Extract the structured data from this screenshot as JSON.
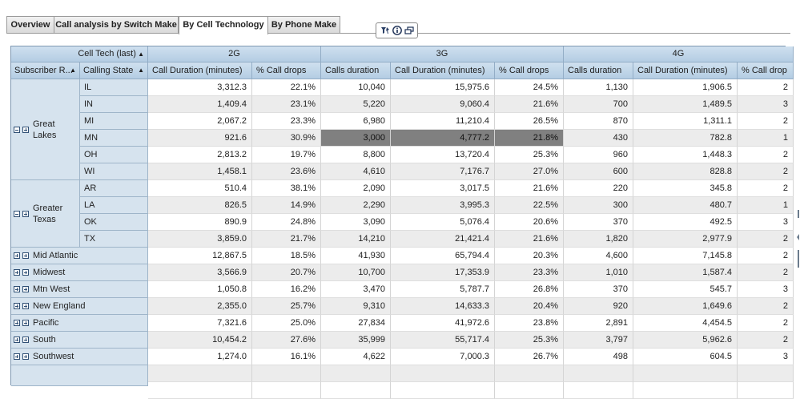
{
  "tabs": [
    "Overview",
    "Call analysis by Switch Make",
    "By Cell Technology",
    "By Phone Make"
  ],
  "active_tab": "By Cell Technology",
  "colors": {
    "header": "#c3d7ea",
    "row_header": "#d6e3ee",
    "selected": "#808080",
    "stripe": "#ececec"
  },
  "toolbar_icons": [
    "filter-pin-icon",
    "info-icon",
    "window-restore-icon"
  ],
  "crosstab": {
    "column_dim_label": "Cell Tech (last)",
    "row_dim_labels": [
      "Subscriber R...",
      "Calling State"
    ],
    "tech_groups": [
      {
        "name": "2G",
        "measures": [
          "Call Duration (minutes)",
          "% Call drops"
        ]
      },
      {
        "name": "3G",
        "measures": [
          "Calls duration",
          "Call Duration (minutes)",
          "% Call drops"
        ]
      },
      {
        "name": "4G",
        "measures": [
          "Calls duration",
          "Call Duration (minutes)",
          "% Call drop"
        ]
      }
    ],
    "rows": [
      {
        "region": "Great Lakes",
        "state": "IL",
        "v": [
          "3,312.3",
          "22.1%",
          "10,040",
          "15,975.6",
          "24.5%",
          "1,130",
          "1,906.5",
          "2"
        ]
      },
      {
        "region": "Great Lakes",
        "state": "IN",
        "v": [
          "1,409.4",
          "23.1%",
          "5,220",
          "9,060.4",
          "21.6%",
          "700",
          "1,489.5",
          "3"
        ]
      },
      {
        "region": "Great Lakes",
        "state": "MI",
        "v": [
          "2,067.2",
          "23.3%",
          "6,980",
          "11,210.4",
          "26.5%",
          "870",
          "1,311.1",
          "2"
        ]
      },
      {
        "region": "Great Lakes",
        "state": "MN",
        "v": [
          "921.6",
          "30.9%",
          "3,000",
          "4,777.2",
          "21.8%",
          "430",
          "782.8",
          "1"
        ],
        "selected": true
      },
      {
        "region": "Great Lakes",
        "state": "OH",
        "v": [
          "2,813.2",
          "19.7%",
          "8,800",
          "13,720.4",
          "25.3%",
          "960",
          "1,448.3",
          "2"
        ]
      },
      {
        "region": "Great Lakes",
        "state": "WI",
        "v": [
          "1,458.1",
          "23.6%",
          "4,610",
          "7,176.7",
          "27.0%",
          "600",
          "828.8",
          "2"
        ]
      },
      {
        "region": "Greater Texas",
        "state": "AR",
        "v": [
          "510.4",
          "38.1%",
          "2,090",
          "3,017.5",
          "21.6%",
          "220",
          "345.8",
          "2"
        ]
      },
      {
        "region": "Greater Texas",
        "state": "LA",
        "v": [
          "826.5",
          "14.9%",
          "2,290",
          "3,995.3",
          "22.5%",
          "300",
          "480.7",
          "1"
        ]
      },
      {
        "region": "Greater Texas",
        "state": "OK",
        "v": [
          "890.9",
          "24.8%",
          "3,090",
          "5,076.4",
          "20.6%",
          "370",
          "492.5",
          "3"
        ]
      },
      {
        "region": "Greater Texas",
        "state": "TX",
        "v": [
          "3,859.0",
          "21.7%",
          "14,210",
          "21,421.4",
          "21.6%",
          "1,820",
          "2,977.9",
          "2"
        ]
      },
      {
        "region": "Mid Atlantic",
        "state": "",
        "v": [
          "12,867.5",
          "18.5%",
          "41,930",
          "65,794.4",
          "20.3%",
          "4,600",
          "7,145.8",
          "2"
        ]
      },
      {
        "region": "Midwest",
        "state": "",
        "v": [
          "3,566.9",
          "20.7%",
          "10,700",
          "17,353.9",
          "23.3%",
          "1,010",
          "1,587.4",
          "2"
        ]
      },
      {
        "region": "Mtn West",
        "state": "",
        "v": [
          "1,050.8",
          "16.2%",
          "3,470",
          "5,787.7",
          "26.8%",
          "370",
          "545.7",
          "3"
        ]
      },
      {
        "region": "New England",
        "state": "",
        "v": [
          "2,355.0",
          "25.7%",
          "9,310",
          "14,633.3",
          "20.4%",
          "920",
          "1,649.6",
          "2"
        ]
      },
      {
        "region": "Pacific",
        "state": "",
        "v": [
          "7,321.6",
          "25.0%",
          "27,834",
          "41,972.6",
          "23.8%",
          "2,891",
          "4,454.5",
          "2"
        ]
      },
      {
        "region": "South",
        "state": "",
        "v": [
          "10,454.2",
          "27.6%",
          "35,999",
          "55,717.4",
          "25.3%",
          "3,797",
          "5,962.6",
          "2"
        ]
      },
      {
        "region": "Southwest",
        "state": "",
        "v": [
          "1,274.0",
          "16.1%",
          "4,622",
          "7,000.3",
          "26.7%",
          "498",
          "604.5",
          "3"
        ]
      }
    ],
    "expanded_regions": [
      "Great Lakes",
      "Greater Texas"
    ],
    "collapsed_regions": [
      "Mid Atlantic",
      "Midwest",
      "Mtn West",
      "New England",
      "Pacific",
      "South",
      "Southwest"
    ]
  }
}
